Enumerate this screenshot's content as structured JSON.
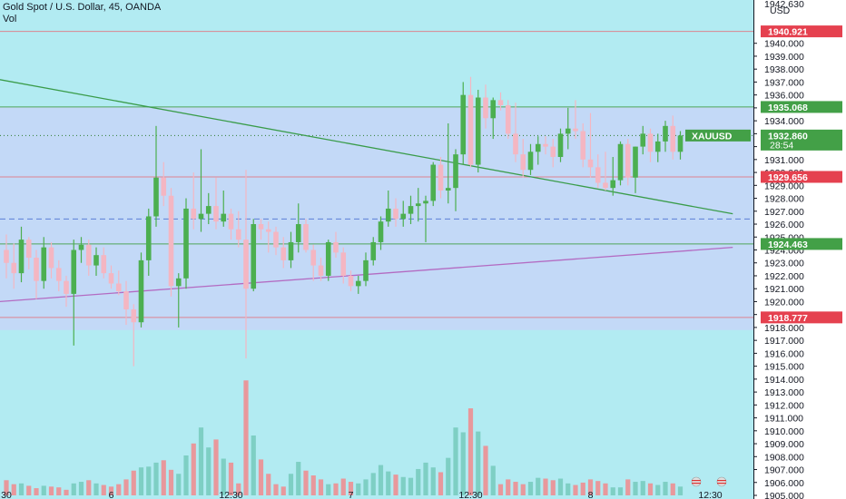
{
  "header": {
    "title": "Gold Spot / U.S. Dollar, 45, OANDA",
    "volume_label": "Vol"
  },
  "colors": {
    "up": "#4caf50",
    "down": "#f4b6c2",
    "vol_up": "#7ecfc4",
    "vol_down": "#e8989c",
    "band_fill": "#c3d9f7",
    "lower_bg": "#b2ebf2",
    "trend_green": "#3a9c4a",
    "trend_purple": "#b36bc2",
    "red_tag": "#e5414f",
    "green_tag": "#43a047"
  },
  "chart_data": {
    "type": "candlestick",
    "symbol": "XAUUSD",
    "ylim": [
      1905,
      1943
    ],
    "y_ticks": [
      1905,
      1906,
      1907,
      1908,
      1909,
      1910,
      1911,
      1912,
      1913,
      1914,
      1915,
      1916,
      1917,
      1918,
      1919,
      1920,
      1921,
      1922,
      1923,
      1924,
      1925,
      1926,
      1927,
      1928,
      1929,
      1930,
      1931,
      1932,
      1933,
      1934,
      1935,
      1936,
      1937,
      1938,
      1939,
      1940
    ],
    "y_tick_labels": [
      "1905.000",
      "1906.000",
      "1907.000",
      "1908.000",
      "1909.000",
      "1910.000",
      "1911.000",
      "1912.000",
      "1913.000",
      "1914.000",
      "1915.000",
      "1916.000",
      "1917.000",
      "1918.000",
      "1919.000",
      "1920.000",
      "1921.000",
      "1922.000",
      "1923.000",
      "1924.000",
      "1925.000",
      "1926.000",
      "1927.000",
      "1928.000",
      "1929.000",
      "1930.000",
      "1931.000",
      "1932.000",
      "1933.000",
      "1934.000",
      "1935.000",
      "1936.000",
      "1937.000",
      "1938.000",
      "1939.000",
      "1940.000"
    ],
    "x_labels": [
      {
        "label": "30",
        "index": 0
      },
      {
        "label": "6",
        "index": 14
      },
      {
        "label": "12:30",
        "index": 30
      },
      {
        "label": "7",
        "index": 46
      },
      {
        "label": "12:30",
        "index": 62
      },
      {
        "label": "8",
        "index": 78
      },
      {
        "label": "12:30",
        "index": 94
      }
    ],
    "candles": [
      [
        1924.0,
        1925.2,
        1921.8,
        1923.0
      ],
      [
        1923.0,
        1924.5,
        1921.0,
        1922.2
      ],
      [
        1922.2,
        1925.8,
        1921.5,
        1924.8
      ],
      [
        1924.8,
        1925.0,
        1922.5,
        1923.4
      ],
      [
        1923.4,
        1924.0,
        1920.2,
        1921.6
      ],
      [
        1921.6,
        1925.0,
        1921.0,
        1924.2
      ],
      [
        1924.2,
        1924.6,
        1921.8,
        1922.6
      ],
      [
        1922.6,
        1923.2,
        1920.8,
        1921.6
      ],
      [
        1921.6,
        1922.0,
        1919.6,
        1920.6
      ],
      [
        1920.6,
        1924.8,
        1916.6,
        1924.0
      ],
      [
        1924.0,
        1925.0,
        1923.0,
        1924.4
      ],
      [
        1924.4,
        1924.8,
        1922.0,
        1922.8
      ],
      [
        1922.8,
        1924.2,
        1922.0,
        1923.6
      ],
      [
        1923.6,
        1924.2,
        1921.8,
        1922.2
      ],
      [
        1922.2,
        1922.8,
        1921.0,
        1921.4
      ],
      [
        1921.4,
        1922.4,
        1920.5,
        1920.8
      ],
      [
        1920.8,
        1921.6,
        1918.2,
        1919.4
      ],
      [
        1919.4,
        1919.8,
        1915.0,
        1918.4
      ],
      [
        1918.4,
        1923.8,
        1918.0,
        1923.2
      ],
      [
        1923.2,
        1927.2,
        1922.0,
        1926.6
      ],
      [
        1926.6,
        1933.6,
        1925.8,
        1929.6
      ],
      [
        1929.6,
        1930.8,
        1927.4,
        1928.2
      ],
      [
        1928.2,
        1928.8,
        1920.4,
        1921.2
      ],
      [
        1921.2,
        1922.2,
        1918.0,
        1921.8
      ],
      [
        1921.8,
        1928.0,
        1921.0,
        1927.2
      ],
      [
        1927.2,
        1930.0,
        1925.6,
        1926.4
      ],
      [
        1926.4,
        1931.8,
        1925.4,
        1926.8
      ],
      [
        1926.8,
        1928.4,
        1926.0,
        1927.4
      ],
      [
        1927.4,
        1929.6,
        1925.6,
        1926.2
      ],
      [
        1926.2,
        1928.6,
        1925.8,
        1926.8
      ],
      [
        1926.8,
        1927.2,
        1924.8,
        1925.6
      ],
      [
        1925.6,
        1927.0,
        1924.2,
        1924.8
      ],
      [
        1924.8,
        1930.2,
        1915.6,
        1921.0
      ],
      [
        1921.0,
        1926.4,
        1920.8,
        1926.0
      ],
      [
        1926.0,
        1926.4,
        1924.8,
        1925.6
      ],
      [
        1925.6,
        1926.2,
        1923.8,
        1925.4
      ],
      [
        1925.4,
        1925.8,
        1923.6,
        1924.2
      ],
      [
        1924.2,
        1925.0,
        1922.6,
        1923.2
      ],
      [
        1923.2,
        1925.4,
        1922.6,
        1924.6
      ],
      [
        1924.6,
        1927.6,
        1923.8,
        1926.0
      ],
      [
        1926.0,
        1926.4,
        1923.8,
        1924.0
      ],
      [
        1924.0,
        1924.4,
        1921.6,
        1922.8
      ],
      [
        1922.8,
        1923.4,
        1921.6,
        1922.0
      ],
      [
        1922.0,
        1924.8,
        1921.6,
        1924.6
      ],
      [
        1924.6,
        1925.4,
        1923.4,
        1923.8
      ],
      [
        1923.8,
        1924.2,
        1921.4,
        1922.0
      ],
      [
        1922.0,
        1922.4,
        1920.8,
        1921.2
      ],
      [
        1921.2,
        1922.0,
        1920.6,
        1921.6
      ],
      [
        1921.6,
        1923.8,
        1921.2,
        1923.2
      ],
      [
        1923.2,
        1925.0,
        1922.8,
        1924.6
      ],
      [
        1924.6,
        1926.6,
        1924.0,
        1926.2
      ],
      [
        1926.2,
        1928.6,
        1925.8,
        1927.2
      ],
      [
        1927.2,
        1928.0,
        1925.8,
        1926.4
      ],
      [
        1926.4,
        1927.8,
        1925.8,
        1926.8
      ],
      [
        1926.8,
        1928.2,
        1926.0,
        1927.4
      ],
      [
        1927.4,
        1928.8,
        1926.2,
        1927.6
      ],
      [
        1927.6,
        1928.2,
        1924.6,
        1927.8
      ],
      [
        1927.8,
        1930.8,
        1927.4,
        1930.6
      ],
      [
        1930.6,
        1931.2,
        1928.0,
        1928.6
      ],
      [
        1928.6,
        1933.8,
        1927.6,
        1928.8
      ],
      [
        1928.8,
        1931.8,
        1927.0,
        1931.4
      ],
      [
        1931.4,
        1937.0,
        1930.6,
        1936.0
      ],
      [
        1936.0,
        1937.4,
        1930.4,
        1930.6
      ],
      [
        1930.6,
        1936.4,
        1930.0,
        1935.8
      ],
      [
        1935.8,
        1936.8,
        1933.4,
        1934.2
      ],
      [
        1934.2,
        1935.8,
        1932.6,
        1935.6
      ],
      [
        1935.6,
        1936.2,
        1934.8,
        1935.2
      ],
      [
        1935.2,
        1935.6,
        1932.6,
        1933.0
      ],
      [
        1933.0,
        1935.4,
        1930.8,
        1931.4
      ],
      [
        1931.4,
        1932.6,
        1929.6,
        1930.2
      ],
      [
        1930.2,
        1932.2,
        1929.8,
        1931.6
      ],
      [
        1931.6,
        1932.8,
        1930.6,
        1932.2
      ],
      [
        1932.2,
        1932.8,
        1931.4,
        1932.0
      ],
      [
        1932.0,
        1932.6,
        1930.4,
        1931.2
      ],
      [
        1931.2,
        1933.4,
        1930.8,
        1933.0
      ],
      [
        1933.0,
        1935.0,
        1931.8,
        1933.4
      ],
      [
        1933.4,
        1935.6,
        1932.6,
        1933.2
      ],
      [
        1933.2,
        1933.8,
        1930.4,
        1931.0
      ],
      [
        1931.0,
        1934.6,
        1929.6,
        1930.4
      ],
      [
        1930.4,
        1931.4,
        1928.8,
        1929.2
      ],
      [
        1929.2,
        1931.6,
        1928.6,
        1928.8
      ],
      [
        1928.8,
        1931.2,
        1928.2,
        1929.4
      ],
      [
        1929.4,
        1932.4,
        1929.0,
        1932.2
      ],
      [
        1932.2,
        1932.6,
        1929.0,
        1929.6
      ],
      [
        1929.6,
        1932.0,
        1928.4,
        1932.0
      ],
      [
        1932.0,
        1933.6,
        1931.4,
        1933.0
      ],
      [
        1933.0,
        1933.4,
        1930.8,
        1931.6
      ],
      [
        1931.6,
        1933.0,
        1930.8,
        1932.4
      ],
      [
        1932.4,
        1934.0,
        1931.6,
        1933.6
      ],
      [
        1933.6,
        1934.4,
        1931.0,
        1931.6
      ],
      [
        1931.6,
        1933.2,
        1931.0,
        1932.86
      ]
    ],
    "volume": [
      38,
      28,
      30,
      24,
      18,
      24,
      22,
      20,
      14,
      30,
      34,
      38,
      30,
      26,
      22,
      28,
      40,
      62,
      70,
      72,
      82,
      88,
      64,
      54,
      100,
      130,
      170,
      120,
      140,
      92,
      82,
      30,
      288,
      150,
      90,
      54,
      28,
      22,
      54,
      84,
      62,
      50,
      40,
      28,
      30,
      42,
      34,
      30,
      40,
      56,
      76,
      60,
      52,
      46,
      44,
      66,
      82,
      70,
      58,
      94,
      170,
      158,
      218,
      160,
      124,
      74,
      28,
      40,
      34,
      28,
      34,
      44,
      42,
      38,
      42,
      30,
      26,
      32,
      40,
      36,
      30,
      20,
      20,
      40,
      34,
      36,
      30,
      26,
      34,
      30,
      22
    ],
    "volume_colors": "close_vs_open",
    "horizontal_levels": [
      {
        "value": 1940.921,
        "label": "1940.921",
        "style": "red"
      },
      {
        "value": 1935.068,
        "label": "1935.068",
        "style": "green"
      },
      {
        "value": 1929.656,
        "label": "1929.656",
        "style": "red"
      },
      {
        "value": 1924.463,
        "label": "1924.463",
        "style": "green"
      },
      {
        "value": 1918.777,
        "label": "1918.777",
        "style": "red"
      }
    ],
    "dashed_level": 1926.4,
    "band": [
      1917.8,
      1935.1
    ],
    "trendlines": [
      {
        "color": "green",
        "from": [
          -1,
          1937.2
        ],
        "to": [
          97,
          1926.8
        ]
      },
      {
        "color": "purple",
        "from": [
          -1,
          1920.0
        ],
        "to": [
          97,
          1924.2
        ]
      }
    ],
    "current_price": 1932.86,
    "current_price_label": "1932.860",
    "countdown": "28:54",
    "symbol_tag": "XAUUSD",
    "top_right_labels": [
      "1942.630",
      "USD"
    ]
  }
}
